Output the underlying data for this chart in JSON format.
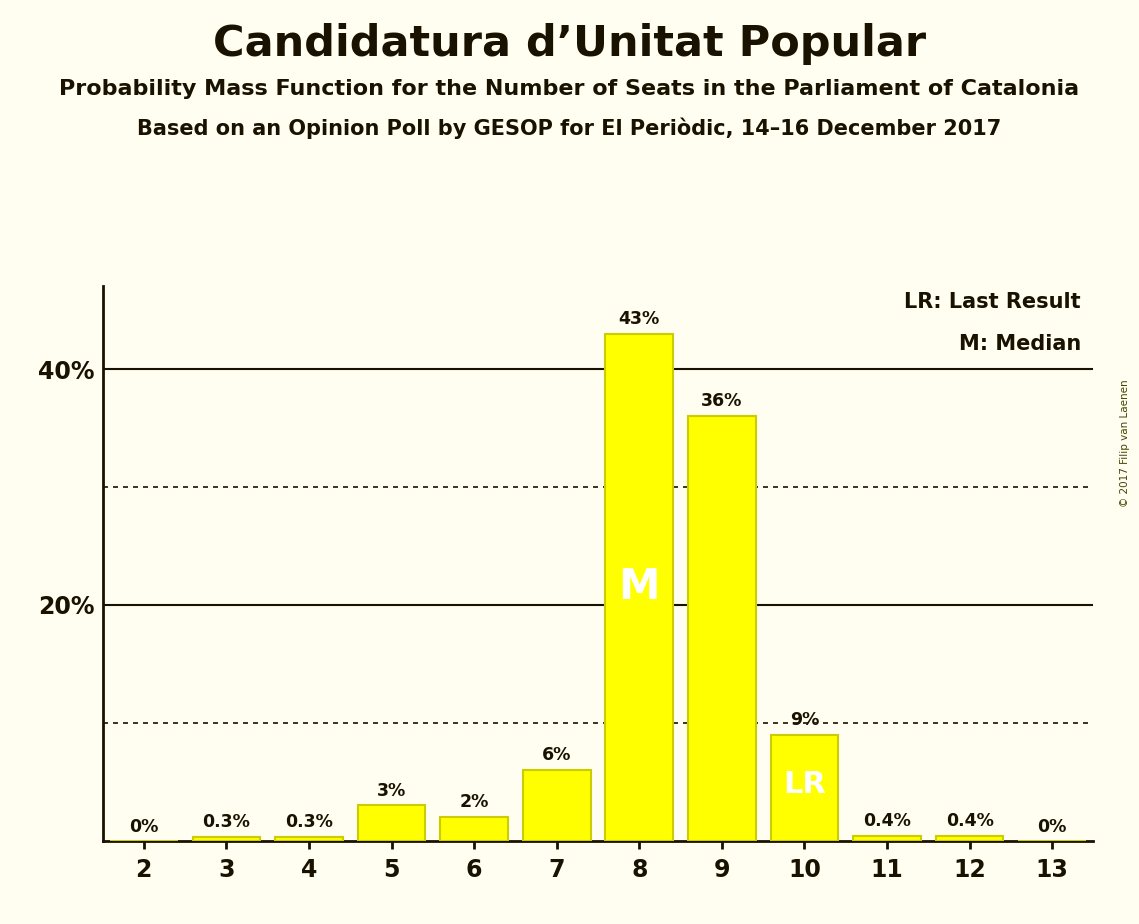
{
  "title": "Candidatura d’Unitat Popular",
  "subtitle1": "Probability Mass Function for the Number of Seats in the Parliament of Catalonia",
  "subtitle2": "Based on an Opinion Poll by GESOP for El Periòdic, 14–16 December 2017",
  "copyright": "© 2017 Filip van Laenen",
  "categories": [
    2,
    3,
    4,
    5,
    6,
    7,
    8,
    9,
    10,
    11,
    12,
    13
  ],
  "values": [
    0.0,
    0.3,
    0.3,
    3.0,
    2.0,
    6.0,
    43.0,
    36.0,
    9.0,
    0.4,
    0.4,
    0.0
  ],
  "labels": [
    "0%",
    "0.3%",
    "0.3%",
    "3%",
    "2%",
    "6%",
    "43%",
    "36%",
    "9%",
    "0.4%",
    "0.4%",
    "0%"
  ],
  "bar_color": "#FFFF00",
  "bar_edge_color": "#CCCC00",
  "background_color": "#FFFEF0",
  "text_color": "#1a1200",
  "median_seat": 8,
  "last_result_seat": 10,
  "legend_lr": "LR: Last Result",
  "legend_m": "M: Median",
  "ytick_labels_shown": [
    "40%",
    "20%"
  ],
  "ytick_values_shown": [
    40,
    20
  ],
  "dotted_lines": [
    10,
    30
  ],
  "solid_lines": [
    20,
    40
  ],
  "ylim": [
    0,
    47
  ],
  "xlim": [
    1.5,
    13.5
  ]
}
